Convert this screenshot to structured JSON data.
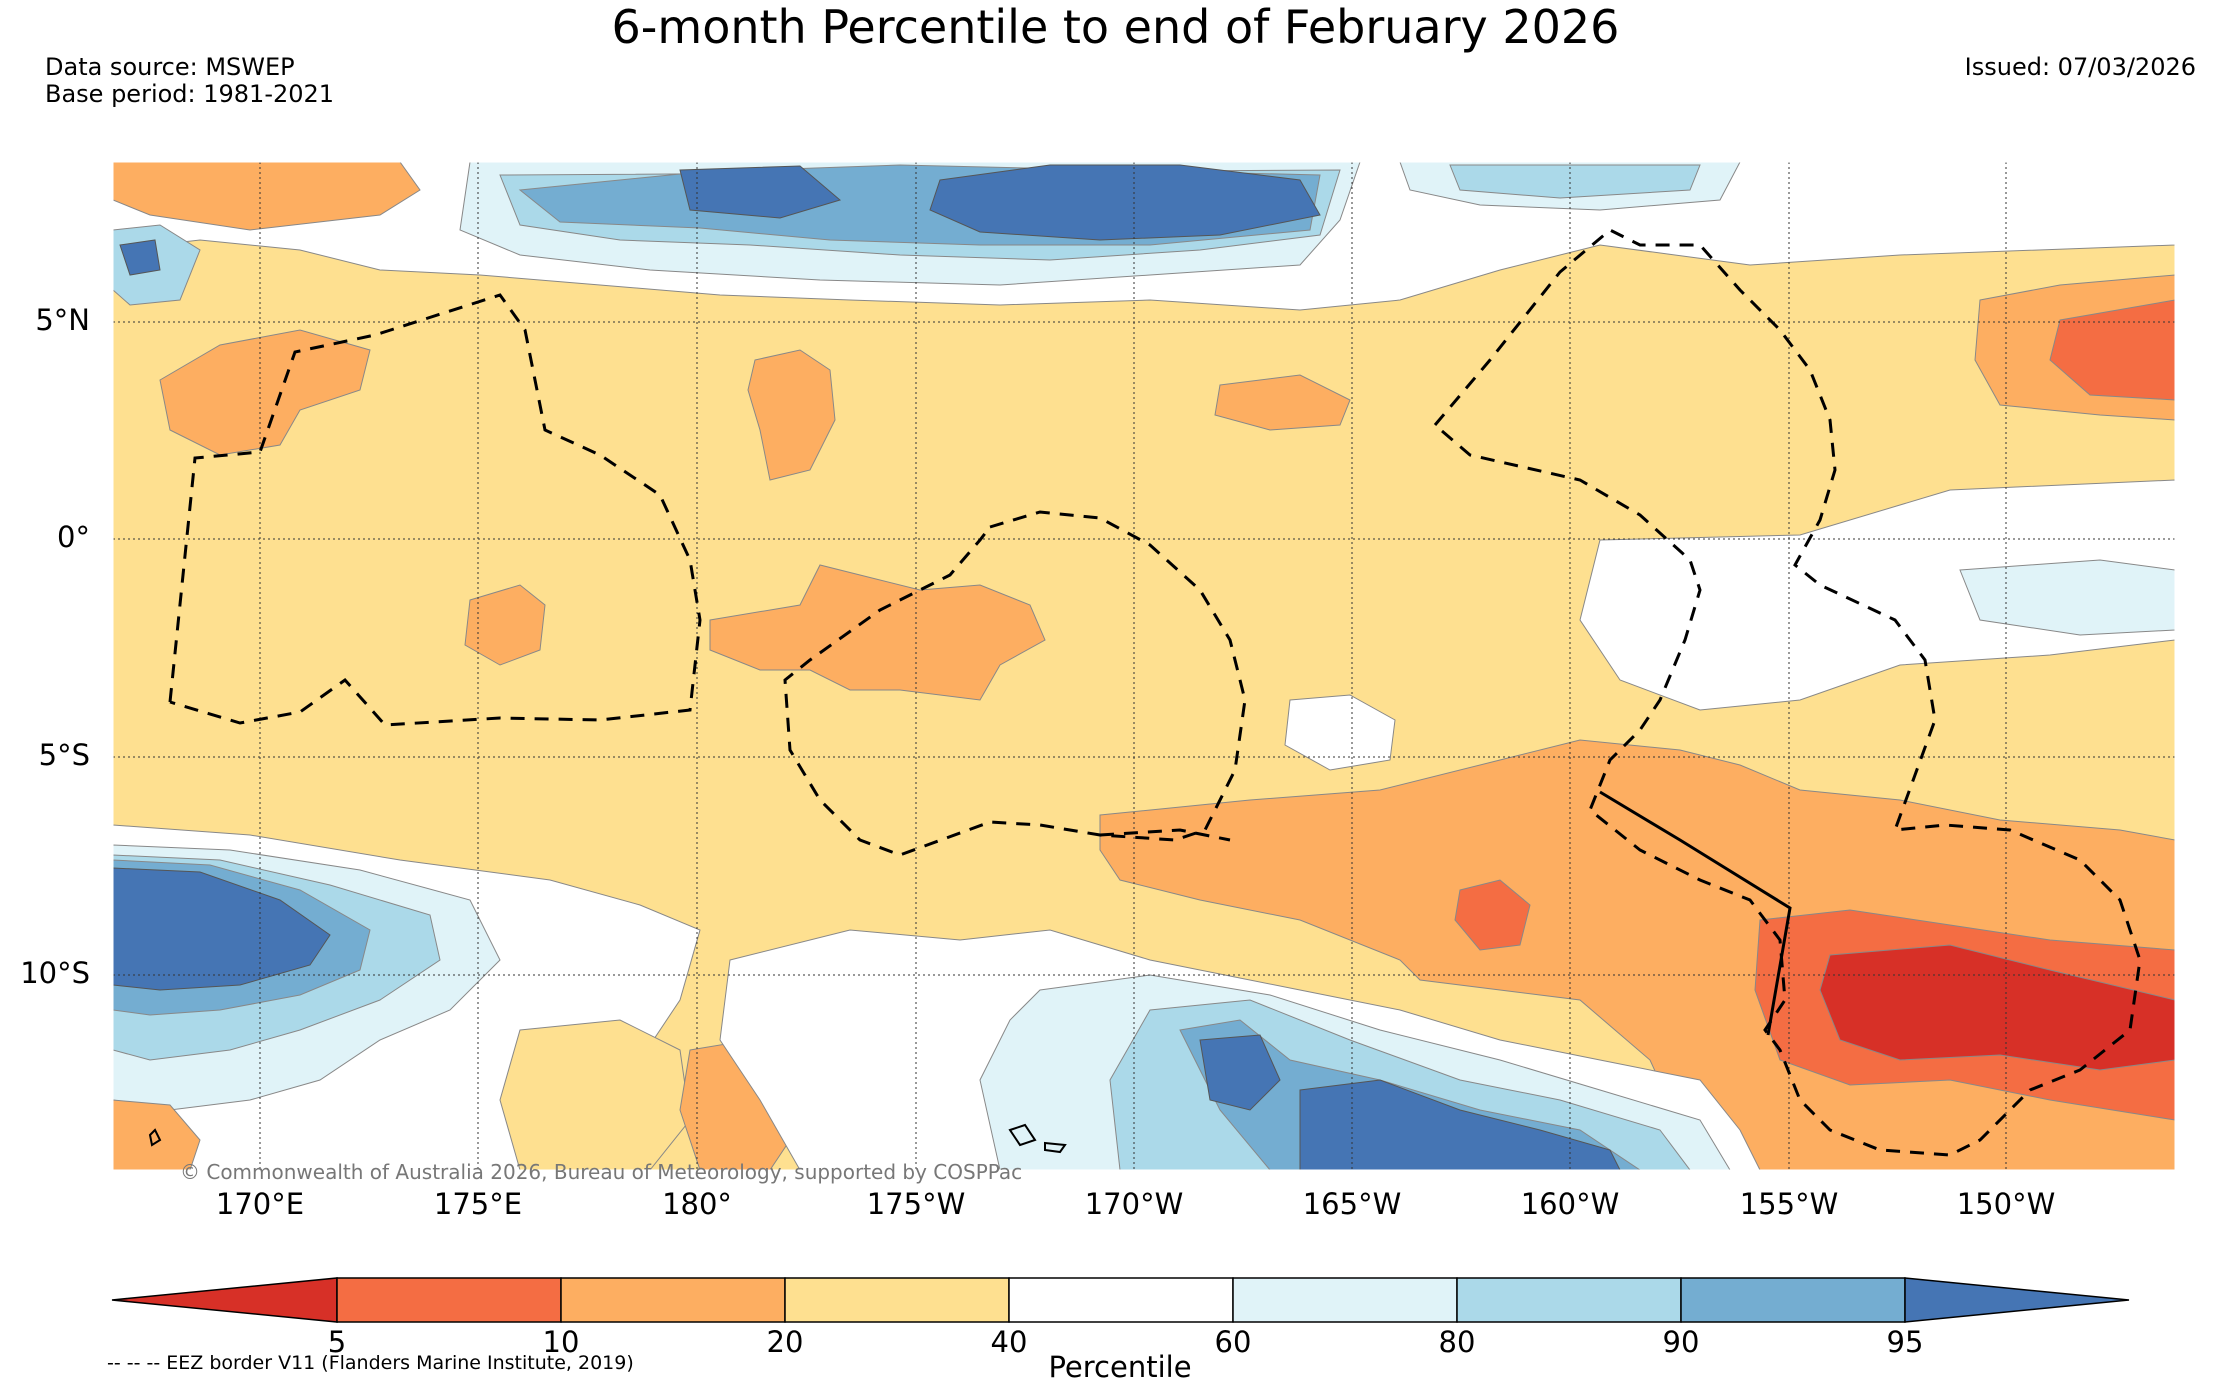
{
  "header": {
    "title": "6-month Percentile to end of February 2026",
    "data_source": "Data source: MSWEP",
    "base_period": "Base period: 1981-2021",
    "issued": "Issued: 07/03/2026"
  },
  "map": {
    "lon_labels": [
      "170°E",
      "175°E",
      "180°",
      "175°W",
      "170°W",
      "165°W",
      "160°W",
      "155°W",
      "150°W"
    ],
    "lat_labels": [
      "5°N",
      "0°",
      "5°S",
      "10°S"
    ],
    "copyright": "© Commonwealth of Australia 2026, Bureau of Meteorology, supported by COSPPac"
  },
  "legend": {
    "title": "Percentile",
    "ticks": [
      "5",
      "10",
      "20",
      "40",
      "60",
      "80",
      "90",
      "95"
    ],
    "colors": [
      "#d73027",
      "#f46d43",
      "#fdae61",
      "#fee090",
      "#ffffff",
      "#e0f3f8",
      "#abd9e9",
      "#74add1",
      "#4575b4"
    ],
    "eez_note": "-- -- -- EEZ border V11 (Flanders Marine Institute, 2019)"
  }
}
